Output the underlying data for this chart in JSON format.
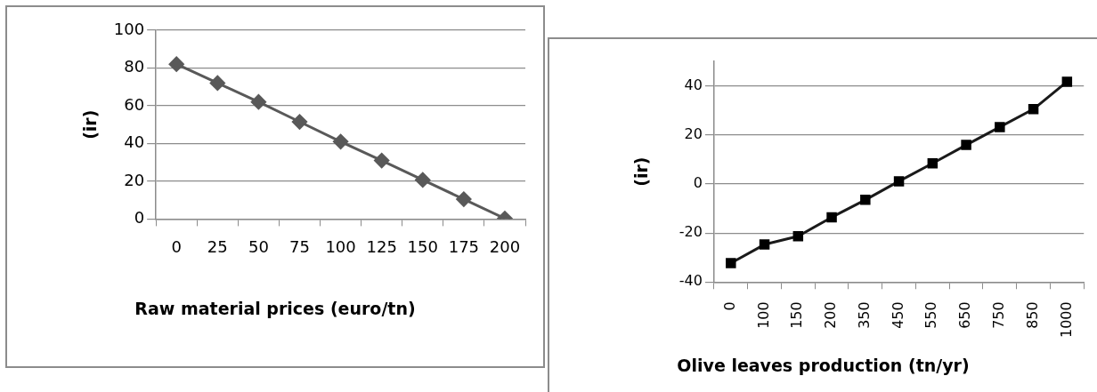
{
  "chart_data": [
    {
      "type": "line",
      "xlabel": "Raw material prices (euro/tn)",
      "ylabel": "(ir)",
      "categories": [
        "0",
        "25",
        "50",
        "75",
        "100",
        "125",
        "150",
        "175",
        "200"
      ],
      "series": [
        {
          "color": "#595959",
          "values": [
            82,
            72,
            62,
            51.5,
            41,
            31,
            20.7,
            10.5,
            0.3
          ]
        }
      ],
      "ylim": [
        0,
        100
      ],
      "yticks": [
        0,
        20,
        40,
        60,
        80,
        100
      ],
      "grid": "y",
      "legend": false,
      "marker": "diamond",
      "line_style": "solid"
    },
    {
      "type": "line",
      "xlabel": "Olive leaves production (tn/yr)",
      "ylabel": "(ir)",
      "categories": [
        "0",
        "100",
        "150",
        "200",
        "350",
        "450",
        "550",
        "650",
        "750",
        "850",
        "1000"
      ],
      "series": [
        {
          "color": "#1a1a1a",
          "values": [
            -32.3,
            -24.7,
            -21.3,
            -13.6,
            -6.5,
            1.1,
            8.4,
            15.9,
            23.2,
            30.5,
            41.7
          ]
        }
      ],
      "ylim": [
        -40,
        50
      ],
      "yticks": [
        -40,
        -20,
        0,
        20,
        40
      ],
      "grid": "y",
      "legend": false,
      "marker": "square",
      "line_style": "solid"
    }
  ]
}
